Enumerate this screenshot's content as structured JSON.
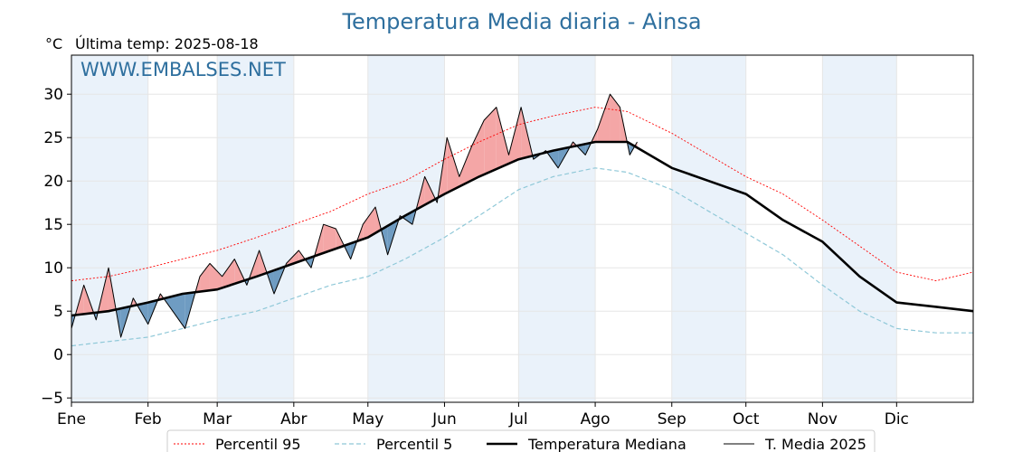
{
  "chart_data": {
    "type": "line",
    "title": "Temperatura Media diaria - Ainsa",
    "ylabel": "°C",
    "subtitle": "Última temp: 2025-08-18",
    "watermark": "WWW.EMBALSES.NET",
    "ylim": [
      -5.5,
      34.5
    ],
    "yticks": [
      -5,
      0,
      5,
      10,
      15,
      20,
      25,
      30
    ],
    "ytick_labels": [
      "−5",
      "0",
      "5",
      "10",
      "15",
      "20",
      "25",
      "30"
    ],
    "xlim": [
      0,
      365
    ],
    "months": [
      {
        "label": "Ene",
        "day": 0
      },
      {
        "label": "Feb",
        "day": 31
      },
      {
        "label": "Mar",
        "day": 59
      },
      {
        "label": "Abr",
        "day": 90
      },
      {
        "label": "May",
        "day": 120
      },
      {
        "label": "Jun",
        "day": 151
      },
      {
        "label": "Jul",
        "day": 181
      },
      {
        "label": "Ago",
        "day": 212
      },
      {
        "label": "Sep",
        "day": 243
      },
      {
        "label": "Oct",
        "day": 273
      },
      {
        "label": "Nov",
        "day": 304
      },
      {
        "label": "Dic",
        "day": 334
      }
    ],
    "grid": true,
    "legend_position": "bottom-center",
    "colors": {
      "p95": "#ff0000",
      "p5": "#8fc8d8",
      "median": "#000000",
      "current": "#000000",
      "above": "#f4a6a6",
      "below": "#6f9cc2",
      "title": "#2e6f9e",
      "band": "#eaf2fa"
    },
    "series": [
      {
        "name": "Percentil 95",
        "style": "dotted-red",
        "x": [
          0,
          15,
          31,
          45,
          59,
          75,
          90,
          105,
          120,
          135,
          151,
          165,
          181,
          195,
          212,
          225,
          243,
          258,
          273,
          288,
          304,
          319,
          334,
          350,
          365
        ],
        "values": [
          8.5,
          9.0,
          10.0,
          11.0,
          12.0,
          13.5,
          15.0,
          16.5,
          18.5,
          20.0,
          22.5,
          24.5,
          26.5,
          27.5,
          28.5,
          28.0,
          25.5,
          23.0,
          20.5,
          18.5,
          15.5,
          12.5,
          9.5,
          8.5,
          9.5
        ]
      },
      {
        "name": "Percentil 5",
        "style": "dashed-lightblue",
        "x": [
          0,
          15,
          31,
          45,
          59,
          75,
          90,
          105,
          120,
          135,
          151,
          165,
          181,
          195,
          212,
          225,
          243,
          258,
          273,
          288,
          304,
          319,
          334,
          350,
          365
        ],
        "values": [
          1.0,
          1.5,
          2.0,
          3.0,
          4.0,
          5.0,
          6.5,
          8.0,
          9.0,
          11.0,
          13.5,
          16.0,
          19.0,
          20.5,
          21.5,
          21.0,
          19.0,
          16.5,
          14.0,
          11.5,
          8.0,
          5.0,
          3.0,
          2.5,
          2.5
        ]
      },
      {
        "name": "Temperatura Mediana",
        "style": "thick-black",
        "x": [
          0,
          15,
          31,
          45,
          59,
          75,
          90,
          105,
          120,
          135,
          151,
          165,
          181,
          195,
          212,
          225,
          243,
          258,
          273,
          288,
          304,
          319,
          334,
          350,
          365
        ],
        "values": [
          4.5,
          5.0,
          6.0,
          7.0,
          7.5,
          9.0,
          10.5,
          12.0,
          13.5,
          16.0,
          18.5,
          20.5,
          22.5,
          23.5,
          24.5,
          24.5,
          21.5,
          20.0,
          18.5,
          15.5,
          13.0,
          9.0,
          6.0,
          5.5,
          5.0
        ]
      },
      {
        "name": "T. Media 2025",
        "style": "thin-black",
        "x": [
          0,
          5,
          10,
          15,
          20,
          25,
          31,
          36,
          41,
          46,
          52,
          56,
          61,
          66,
          71,
          76,
          82,
          87,
          92,
          97,
          102,
          107,
          113,
          118,
          123,
          128,
          133,
          138,
          143,
          148,
          152,
          157,
          162,
          167,
          172,
          177,
          182,
          187,
          192,
          197,
          203,
          208,
          213,
          218,
          222,
          226,
          229
        ],
        "values": [
          3.0,
          8.0,
          4.0,
          10.0,
          2.0,
          6.5,
          3.5,
          7.0,
          5.0,
          3.0,
          9.0,
          10.5,
          9.0,
          11.0,
          8.0,
          12.0,
          7.0,
          10.5,
          12.0,
          10.0,
          15.0,
          14.5,
          11.0,
          15.0,
          17.0,
          11.5,
          16.0,
          15.0,
          20.5,
          17.5,
          25.0,
          20.5,
          24.0,
          27.0,
          28.5,
          23.0,
          28.5,
          22.5,
          23.5,
          21.5,
          24.5,
          23.0,
          26.0,
          30.0,
          28.5,
          23.0,
          24.5
        ]
      }
    ]
  },
  "legend": {
    "items": [
      {
        "label": "Percentil 95"
      },
      {
        "label": "Percentil 5"
      },
      {
        "label": "Temperatura Mediana"
      },
      {
        "label": "T. Media 2025"
      }
    ]
  }
}
